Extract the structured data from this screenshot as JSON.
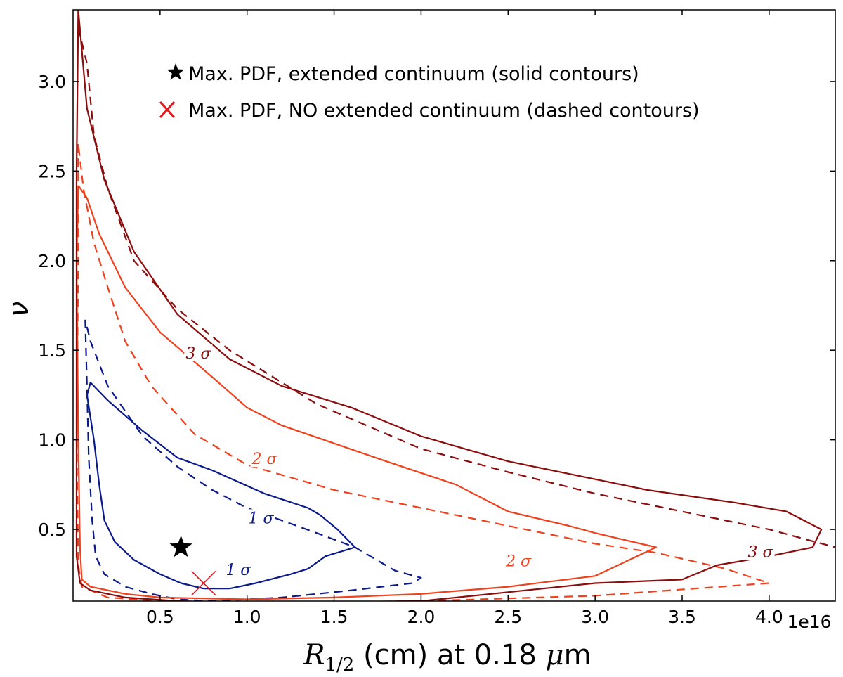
{
  "chart_data": {
    "type": "line",
    "title": "",
    "xlabel": "R_{1/2} (cm) at 0.18 μm",
    "xlabel_parts": {
      "main": "R",
      "sub": "1/2",
      "rest": " (cm) at 0.18 ",
      "mu": "μ",
      "unit": "m"
    },
    "ylabel": "ν",
    "x_multiplier_label": "1e16",
    "x_scale": 1e+16,
    "xlim": [
      0.0,
      4.38
    ],
    "ylim": [
      0.1,
      3.4
    ],
    "x_ticks": [
      0.5,
      1.0,
      1.5,
      2.0,
      2.5,
      3.0,
      3.5,
      4.0
    ],
    "x_tick_labels": [
      "0.5",
      "1.0",
      "1.5",
      "2.0",
      "2.5",
      "3.0",
      "3.5",
      "4.0"
    ],
    "y_ticks": [
      0.5,
      1.0,
      1.5,
      2.0,
      2.5,
      3.0
    ],
    "y_tick_labels": [
      "0.5",
      "1.0",
      "1.5",
      "2.0",
      "2.5",
      "3.0"
    ],
    "grid": false,
    "legend_position": "top",
    "colors": {
      "one_sigma": "#0b1a8a",
      "two_sigma": "#f0401c",
      "three_sigma": "#8b0d0d"
    },
    "legend": [
      {
        "marker": "star",
        "color": "#000000",
        "label": "Max. PDF, extended continuum (solid contours)"
      },
      {
        "marker": "x",
        "color": "#e8151b",
        "label": "Max. PDF, NO extended continuum (dashed contours)"
      }
    ],
    "markers": [
      {
        "name": "max-pdf-extended",
        "shape": "star",
        "color": "#000000",
        "x": 0.62,
        "y": 0.4
      },
      {
        "name": "max-pdf-no-extended",
        "shape": "x",
        "color": "#e8151b",
        "x": 0.75,
        "y": 0.2
      }
    ],
    "series": [
      {
        "level": "1σ",
        "style": "solid",
        "color": "#0b1a8a",
        "points": [
          [
            0.1,
            1.32
          ],
          [
            0.08,
            1.25
          ],
          [
            0.12,
            1.0
          ],
          [
            0.15,
            0.75
          ],
          [
            0.18,
            0.55
          ],
          [
            0.24,
            0.43
          ],
          [
            0.35,
            0.33
          ],
          [
            0.5,
            0.25
          ],
          [
            0.62,
            0.2
          ],
          [
            0.75,
            0.17
          ],
          [
            0.9,
            0.17
          ],
          [
            1.05,
            0.2
          ],
          [
            1.25,
            0.25
          ],
          [
            1.35,
            0.28
          ],
          [
            1.45,
            0.35
          ],
          [
            1.62,
            0.4
          ],
          [
            1.52,
            0.5
          ],
          [
            1.42,
            0.58
          ],
          [
            1.35,
            0.62
          ],
          [
            1.1,
            0.7
          ],
          [
            0.8,
            0.83
          ],
          [
            0.6,
            0.9
          ],
          [
            0.4,
            1.05
          ],
          [
            0.2,
            1.22
          ],
          [
            0.1,
            1.32
          ]
        ]
      },
      {
        "level": "1σ",
        "style": "dashed",
        "color": "#0b1a8a",
        "points": [
          [
            0.07,
            1.67
          ],
          [
            0.08,
            1.3
          ],
          [
            0.09,
            0.9
          ],
          [
            0.11,
            0.55
          ],
          [
            0.13,
            0.35
          ],
          [
            0.18,
            0.25
          ],
          [
            0.3,
            0.18
          ],
          [
            0.45,
            0.14
          ],
          [
            0.6,
            0.11
          ],
          [
            0.8,
            0.1
          ],
          [
            1.2,
            0.12
          ],
          [
            1.6,
            0.16
          ],
          [
            1.95,
            0.2
          ],
          [
            2.0,
            0.23
          ],
          [
            1.85,
            0.27
          ],
          [
            1.62,
            0.4
          ],
          [
            1.4,
            0.48
          ],
          [
            1.2,
            0.55
          ],
          [
            1.0,
            0.62
          ],
          [
            0.8,
            0.72
          ],
          [
            0.6,
            0.85
          ],
          [
            0.4,
            1.02
          ],
          [
            0.2,
            1.3
          ],
          [
            0.1,
            1.55
          ],
          [
            0.07,
            1.67
          ]
        ]
      },
      {
        "level": "2σ",
        "style": "solid",
        "color": "#f0401c",
        "points": [
          [
            0.03,
            2.42
          ],
          [
            0.02,
            2.0
          ],
          [
            0.03,
            1.0
          ],
          [
            0.04,
            0.4
          ],
          [
            0.05,
            0.22
          ],
          [
            0.1,
            0.18
          ],
          [
            0.3,
            0.14
          ],
          [
            0.5,
            0.12
          ],
          [
            1.0,
            0.11
          ],
          [
            1.5,
            0.12
          ],
          [
            2.0,
            0.14
          ],
          [
            2.5,
            0.18
          ],
          [
            3.0,
            0.24
          ],
          [
            3.35,
            0.4
          ],
          [
            3.0,
            0.48
          ],
          [
            2.85,
            0.52
          ],
          [
            2.5,
            0.6
          ],
          [
            2.2,
            0.75
          ],
          [
            1.8,
            0.88
          ],
          [
            1.5,
            0.98
          ],
          [
            1.2,
            1.08
          ],
          [
            1.0,
            1.18
          ],
          [
            0.8,
            1.35
          ],
          [
            0.5,
            1.6
          ],
          [
            0.3,
            1.85
          ],
          [
            0.15,
            2.15
          ],
          [
            0.08,
            2.35
          ],
          [
            0.03,
            2.42
          ]
        ]
      },
      {
        "level": "2σ",
        "style": "dashed",
        "color": "#f0401c",
        "points": [
          [
            0.03,
            2.65
          ],
          [
            0.03,
            2.0
          ],
          [
            0.02,
            1.0
          ],
          [
            0.03,
            0.3
          ],
          [
            0.05,
            0.18
          ],
          [
            0.2,
            0.12
          ],
          [
            0.5,
            0.1
          ],
          [
            1.0,
            0.09
          ],
          [
            2.0,
            0.1
          ],
          [
            3.0,
            0.13
          ],
          [
            4.0,
            0.2
          ],
          [
            3.75,
            0.28
          ],
          [
            3.35,
            0.37
          ],
          [
            3.0,
            0.42
          ],
          [
            2.5,
            0.52
          ],
          [
            2.0,
            0.62
          ],
          [
            1.5,
            0.72
          ],
          [
            1.0,
            0.86
          ],
          [
            0.7,
            1.03
          ],
          [
            0.45,
            1.3
          ],
          [
            0.3,
            1.55
          ],
          [
            0.2,
            1.85
          ],
          [
            0.12,
            2.1
          ],
          [
            0.06,
            2.4
          ],
          [
            0.03,
            2.65
          ]
        ]
      },
      {
        "level": "3σ",
        "style": "solid",
        "color": "#8b0d0d",
        "points": [
          [
            0.03,
            3.4
          ],
          [
            0.02,
            2.5
          ],
          [
            0.02,
            1.0
          ],
          [
            0.02,
            0.35
          ],
          [
            0.04,
            0.2
          ],
          [
            0.1,
            0.16
          ],
          [
            0.3,
            0.12
          ],
          [
            0.6,
            0.1
          ],
          [
            1.0,
            0.09
          ],
          [
            2.0,
            0.1
          ],
          [
            2.5,
            0.15
          ],
          [
            3.0,
            0.2
          ],
          [
            3.5,
            0.22
          ],
          [
            3.7,
            0.3
          ],
          [
            4.0,
            0.35
          ],
          [
            4.25,
            0.4
          ],
          [
            4.3,
            0.5
          ],
          [
            4.1,
            0.6
          ],
          [
            3.8,
            0.65
          ],
          [
            3.3,
            0.72
          ],
          [
            3.0,
            0.78
          ],
          [
            2.5,
            0.88
          ],
          [
            2.0,
            1.02
          ],
          [
            1.6,
            1.18
          ],
          [
            1.2,
            1.3
          ],
          [
            0.9,
            1.45
          ],
          [
            0.6,
            1.7
          ],
          [
            0.35,
            2.05
          ],
          [
            0.18,
            2.45
          ],
          [
            0.08,
            2.85
          ],
          [
            0.03,
            3.4
          ]
        ]
      },
      {
        "level": "3σ",
        "style": "dashed",
        "color": "#8b0d0d",
        "points": [
          [
            0.03,
            3.3
          ],
          [
            0.08,
            3.1
          ],
          [
            0.12,
            2.7
          ],
          [
            0.2,
            2.4
          ],
          [
            0.35,
            2.0
          ],
          [
            0.6,
            1.73
          ],
          [
            0.9,
            1.5
          ],
          [
            1.4,
            1.2
          ],
          [
            2.0,
            0.95
          ],
          [
            2.5,
            0.82
          ],
          [
            3.0,
            0.7
          ],
          [
            3.5,
            0.6
          ],
          [
            4.0,
            0.5
          ],
          [
            4.38,
            0.4
          ]
        ]
      }
    ],
    "contour_labels": [
      {
        "text": "1 σ",
        "color": "#0b1a8a",
        "x": 1.08,
        "y": 0.55
      },
      {
        "text": "1 σ",
        "color": "#0b1a8a",
        "x": 0.95,
        "y": 0.26
      },
      {
        "text": "2 σ",
        "color": "#f0401c",
        "x": 1.1,
        "y": 0.88
      },
      {
        "text": "2 σ",
        "color": "#f0401c",
        "x": 2.56,
        "y": 0.31
      },
      {
        "text": "3 σ",
        "color": "#8b0d0d",
        "x": 0.72,
        "y": 1.47
      },
      {
        "text": "3 σ",
        "color": "#8b0d0d",
        "x": 3.95,
        "y": 0.36
      }
    ]
  }
}
